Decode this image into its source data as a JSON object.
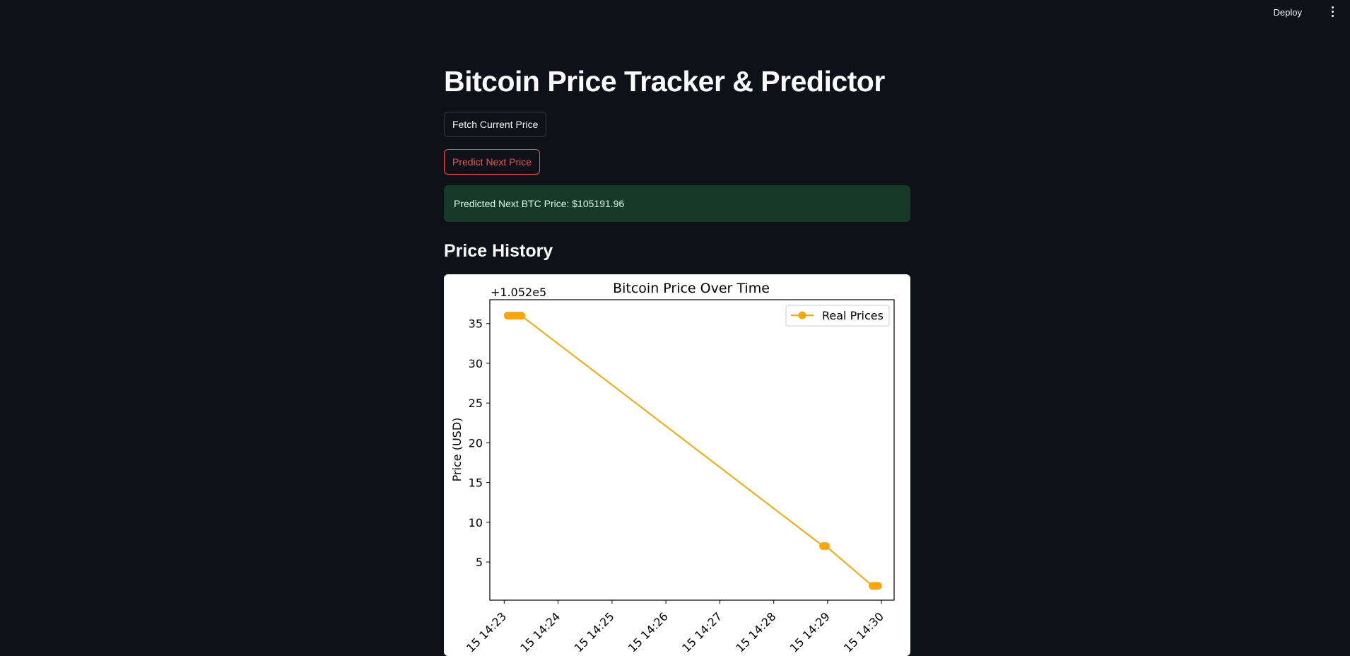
{
  "header": {
    "deploy_label": "Deploy"
  },
  "page": {
    "title": "Bitcoin Price Tracker & Predictor",
    "fetch_button": "Fetch Current Price",
    "predict_button": "Predict Next Price",
    "prediction_message": "Predicted Next BTC Price: $105191.96",
    "section_title": "Price History"
  },
  "colors": {
    "background": "#0e1117",
    "accent": "#ff4b4b",
    "success_bg": "#173928",
    "series": "#ffa500"
  },
  "chart_data": {
    "type": "line",
    "title": "Bitcoin Price Over Time",
    "xlabel": "",
    "ylabel": "Price (USD)",
    "offset_label": "+1.052e5",
    "y_offset": 105200,
    "y_ticks": [
      5,
      10,
      15,
      20,
      25,
      30,
      35
    ],
    "ylim": [
      0.2,
      38.0
    ],
    "xlim": [
      "15 14:22:44",
      "15 14:30:14"
    ],
    "x_ticks": [
      "15 14:23",
      "15 14:24",
      "15 14:25",
      "15 14:26",
      "15 14:27",
      "15 14:28",
      "15 14:29",
      "15 14:30"
    ],
    "legend": "top-right",
    "series": [
      {
        "name": "Real Prices",
        "color": "#ffa500",
        "marker": "circle",
        "points": [
          {
            "x": "15 14:23:04",
            "y": 36.0
          },
          {
            "x": "15 14:23:07",
            "y": 36.0
          },
          {
            "x": "15 14:23:10",
            "y": 36.0
          },
          {
            "x": "15 14:23:13",
            "y": 36.0
          },
          {
            "x": "15 14:23:16",
            "y": 36.0
          },
          {
            "x": "15 14:23:19",
            "y": 36.0
          },
          {
            "x": "15 14:28:55",
            "y": 7.0
          },
          {
            "x": "15 14:28:58",
            "y": 7.0
          },
          {
            "x": "15 14:29:50",
            "y": 2.0
          },
          {
            "x": "15 14:29:53",
            "y": 2.0
          },
          {
            "x": "15 14:29:56",
            "y": 2.0
          }
        ]
      }
    ]
  }
}
